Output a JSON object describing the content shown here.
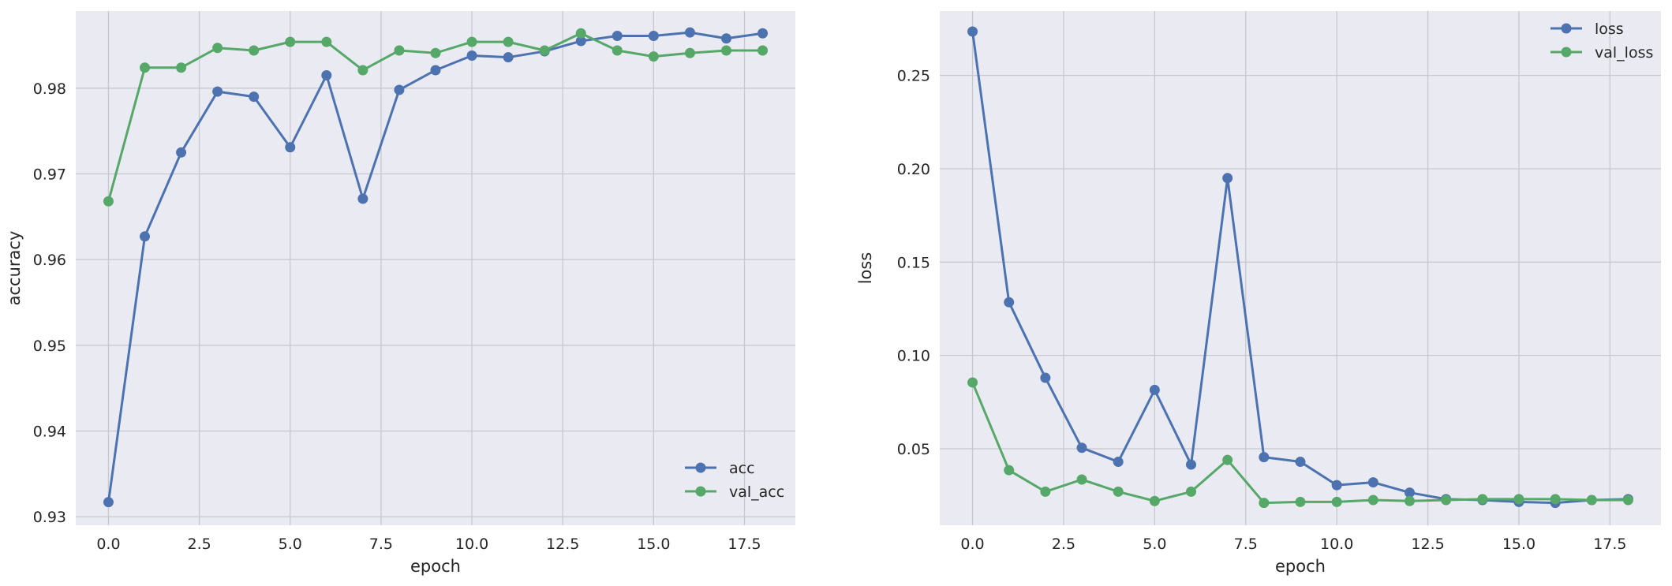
{
  "chart_data": [
    {
      "type": "line",
      "xlabel": "epoch",
      "ylabel": "accuracy",
      "xlim": [
        -0.9,
        18.9
      ],
      "ylim": [
        0.929,
        0.989
      ],
      "xticks": [
        0.0,
        2.5,
        5.0,
        7.5,
        10.0,
        12.5,
        15.0,
        17.5
      ],
      "xtick_labels": [
        "0.0",
        "2.5",
        "5.0",
        "7.5",
        "10.0",
        "12.5",
        "15.0",
        "17.5"
      ],
      "yticks": [
        0.93,
        0.94,
        0.95,
        0.96,
        0.97,
        0.98
      ],
      "ytick_labels": [
        "0.93",
        "0.94",
        "0.95",
        "0.96",
        "0.97",
        "0.98"
      ],
      "grid": true,
      "legend_position": "bottom-right",
      "x": [
        0,
        1,
        2,
        3,
        4,
        5,
        6,
        7,
        8,
        9,
        10,
        11,
        12,
        13,
        14,
        15,
        16,
        17,
        18
      ],
      "series": [
        {
          "name": "acc",
          "color": "#4c72b0",
          "values": [
            0.9317,
            0.9627,
            0.9725,
            0.9796,
            0.979,
            0.9731,
            0.9815,
            0.9671,
            0.9798,
            0.9821,
            0.9838,
            0.9836,
            0.9843,
            0.9855,
            0.9861,
            0.9861,
            0.9865,
            0.9858,
            0.9864
          ]
        },
        {
          "name": "val_acc",
          "color": "#55a868",
          "values": [
            0.9668,
            0.9824,
            0.9824,
            0.9847,
            0.9844,
            0.9854,
            0.9854,
            0.9821,
            0.9844,
            0.9841,
            0.9854,
            0.9854,
            0.9844,
            0.9864,
            0.9844,
            0.9837,
            0.9841,
            0.9844,
            0.9844
          ]
        }
      ]
    },
    {
      "type": "line",
      "xlabel": "epoch",
      "ylabel": "loss",
      "xlim": [
        -0.9,
        18.9
      ],
      "ylim": [
        0.009,
        0.2845
      ],
      "xticks": [
        0.0,
        2.5,
        5.0,
        7.5,
        10.0,
        12.5,
        15.0,
        17.5
      ],
      "xtick_labels": [
        "0.0",
        "2.5",
        "5.0",
        "7.5",
        "10.0",
        "12.5",
        "15.0",
        "17.5"
      ],
      "yticks": [
        0.05,
        0.1,
        0.15,
        0.2,
        0.25
      ],
      "ytick_labels": [
        "0.05",
        "0.10",
        "0.15",
        "0.20",
        "0.25"
      ],
      "grid": true,
      "legend_position": "top-right",
      "x": [
        0,
        1,
        2,
        3,
        4,
        5,
        6,
        7,
        8,
        9,
        10,
        11,
        12,
        13,
        14,
        15,
        16,
        17,
        18
      ],
      "series": [
        {
          "name": "loss",
          "color": "#4c72b0",
          "values": [
            0.2735,
            0.1285,
            0.088,
            0.0505,
            0.043,
            0.0815,
            0.0415,
            0.195,
            0.0455,
            0.043,
            0.0305,
            0.032,
            0.0265,
            0.023,
            0.0225,
            0.0215,
            0.021,
            0.0225,
            0.023
          ]
        },
        {
          "name": "val_loss",
          "color": "#55a868",
          "values": [
            0.0855,
            0.0385,
            0.027,
            0.0335,
            0.027,
            0.022,
            0.027,
            0.044,
            0.021,
            0.0215,
            0.0215,
            0.0225,
            0.022,
            0.0225,
            0.023,
            0.023,
            0.023,
            0.0225,
            0.0225
          ]
        }
      ]
    }
  ]
}
